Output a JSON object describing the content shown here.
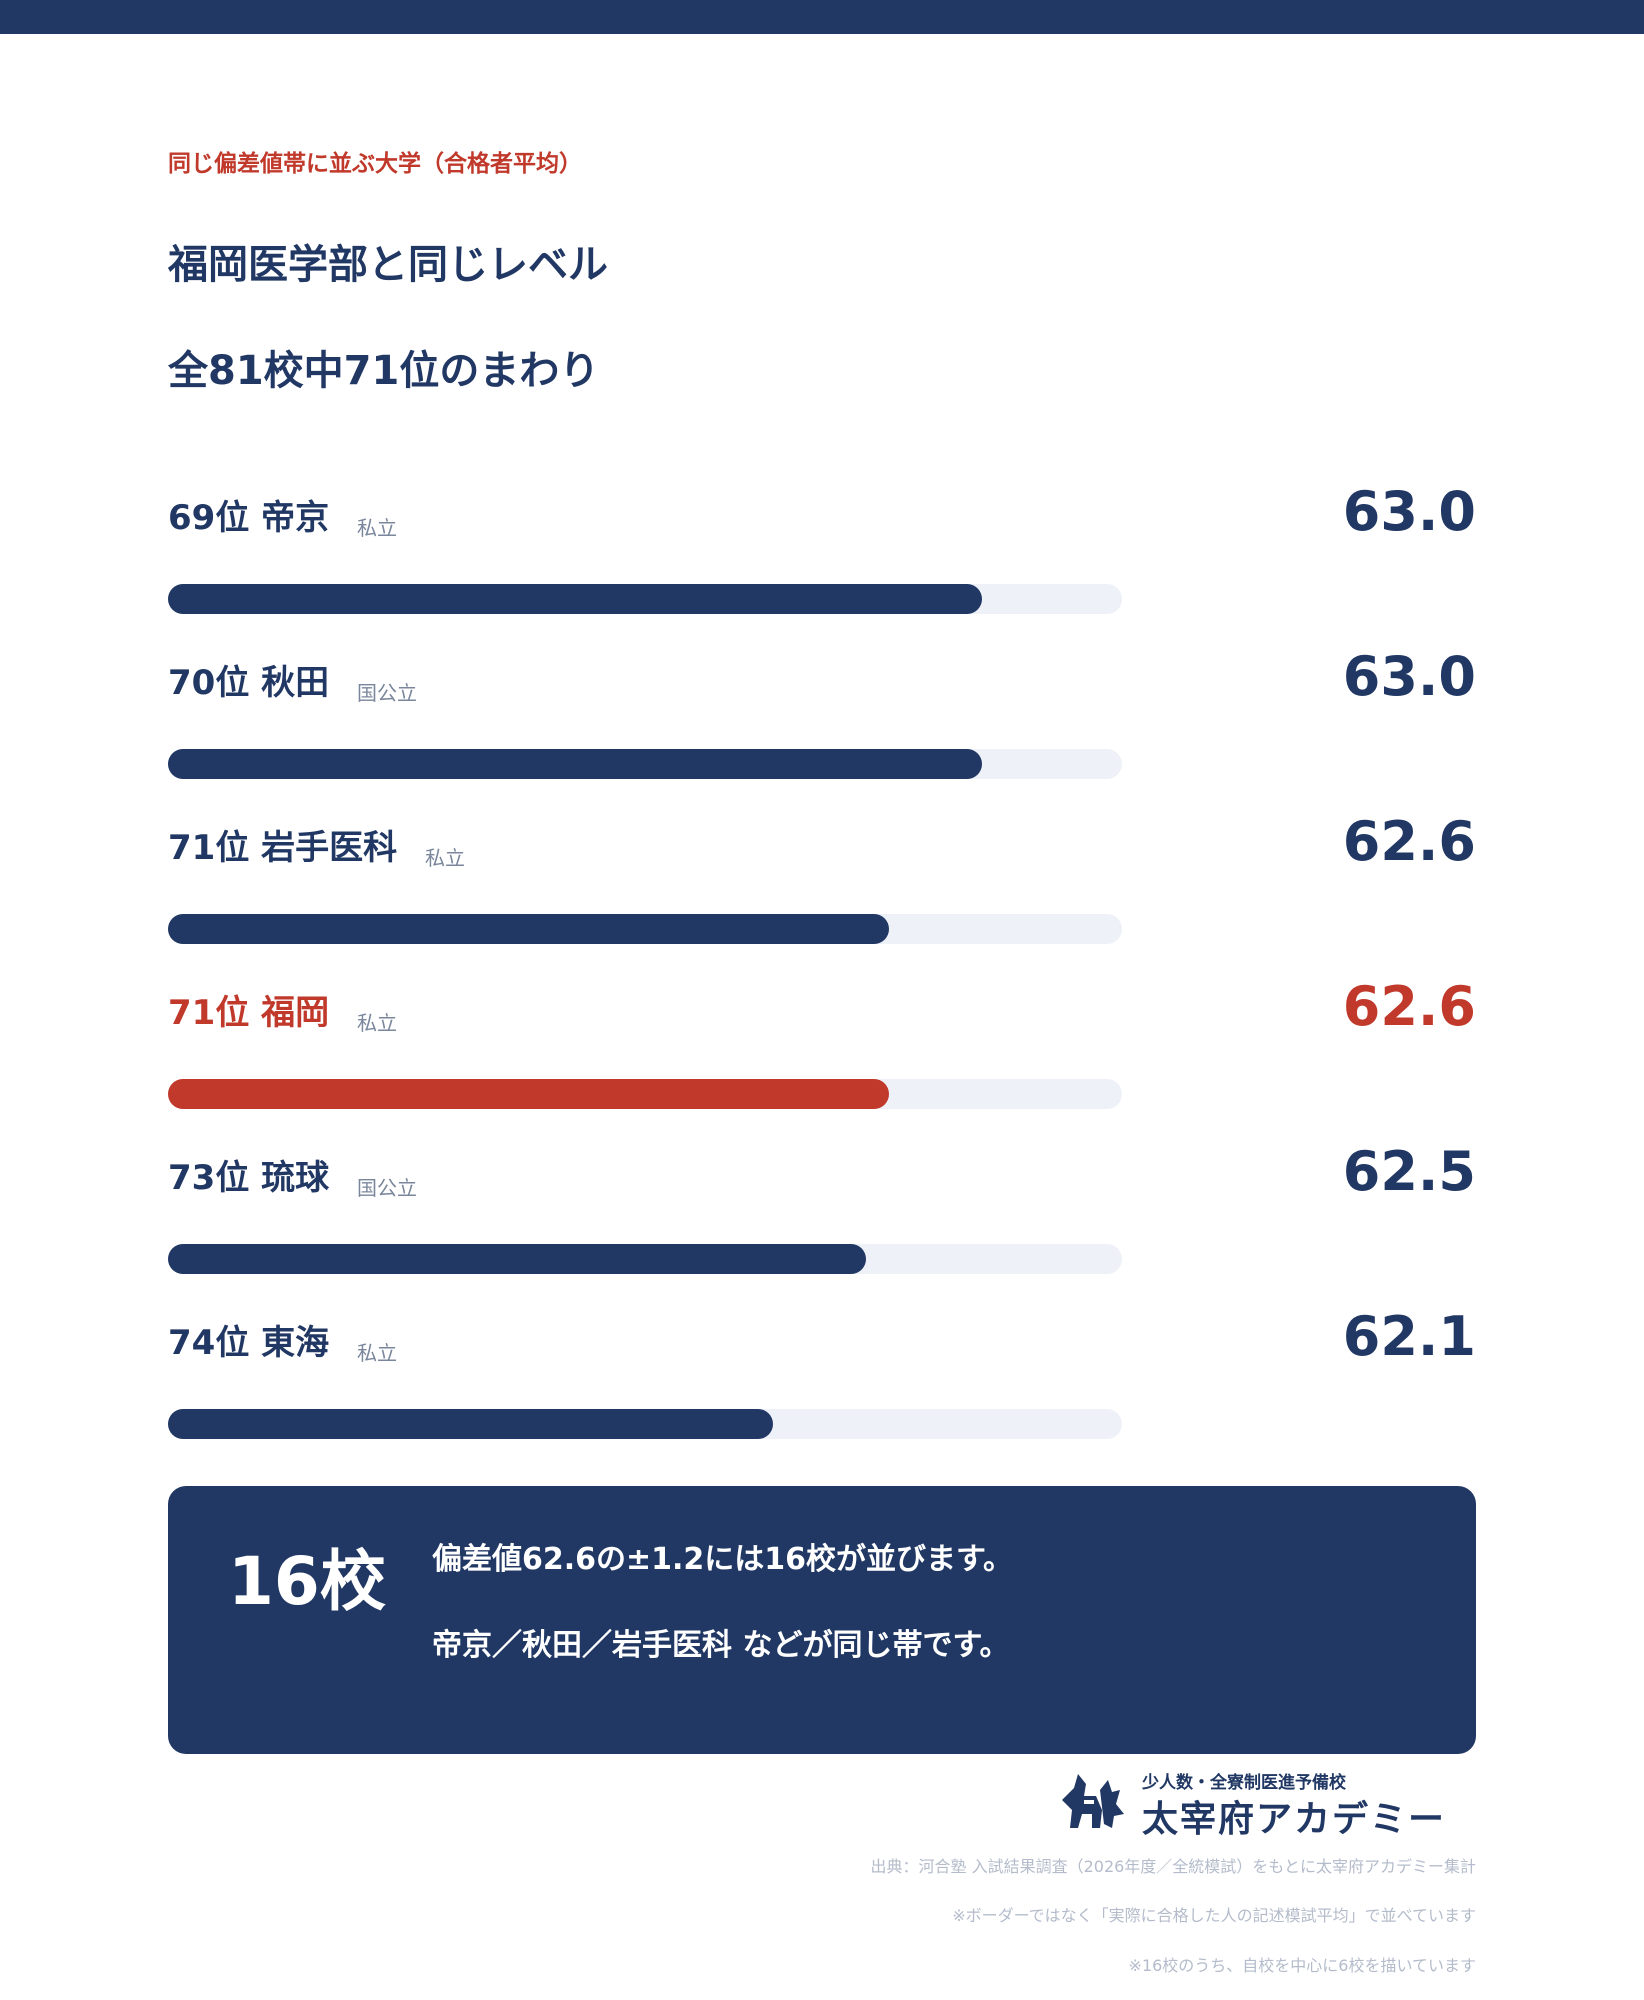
{
  "header": {
    "eyebrow": "同じ偏差値帯に並ぶ大学（合格者平均）",
    "title_line1": "福岡医学部と同じレベル",
    "title_line2": "全81校中71位のまわり"
  },
  "chart_data": {
    "type": "bar",
    "orientation": "horizontal",
    "categories": [
      "69位 帝京",
      "70位 秋田",
      "71位 岩手医科",
      "71位 福岡",
      "73位 琉球",
      "74位 東海"
    ],
    "tags": [
      "私立",
      "国公立",
      "私立",
      "私立",
      "国公立",
      "私立"
    ],
    "values": [
      63.0,
      63.0,
      62.6,
      62.6,
      62.5,
      62.1
    ],
    "value_labels": [
      "63.0",
      "63.0",
      "62.6",
      "62.6",
      "62.5",
      "62.1"
    ],
    "highlight_index": 3,
    "xlim": [
      59.5,
      63.6
    ],
    "colors": {
      "bar": "#213864",
      "highlight": "#c0392b",
      "track": "#eef1f7"
    }
  },
  "summary": {
    "count": "16校",
    "line1": "偏差値62.6の±1.2には16校が並びます。",
    "line2": "帝京／秋田／岩手医科 などが同じ帯です。"
  },
  "logo": {
    "subtitle": "少人数・全寮制医進予備校",
    "name": "太宰府アカデミー"
  },
  "notes": {
    "source": "出典：河合塾 入試結果調査（2026年度／全統模試）をもとに太宰府アカデミー集計",
    "note1": "※ボーダーではなく「実際に合格した人の記述模試平均」で並べています",
    "note2": "※16校のうち、自校を中心に6校を描いています"
  }
}
